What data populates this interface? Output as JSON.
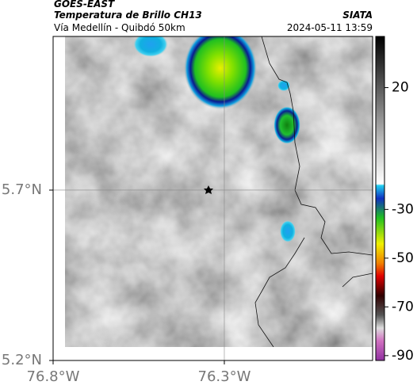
{
  "header": {
    "source": "GOES-EAST",
    "product": "Temperatura de Brillo CH13",
    "org": "SIATA",
    "region": "Vía Medellín - Quibdó 50km",
    "timestamp": "2024-05-11 13:59"
  },
  "chart_data": {
    "type": "map",
    "xlim": [
      -76.8,
      -75.867
    ],
    "ylim": [
      5.2,
      6.151
    ],
    "xticks": [
      {
        "value": -76.8,
        "label": "76.8°W"
      },
      {
        "value": -76.3,
        "label": "76.3°W"
      }
    ],
    "yticks": [
      {
        "value": 5.7,
        "label": "5.7°N"
      },
      {
        "value": 5.2,
        "label": "5.2°N"
      }
    ],
    "grid": true,
    "colorbar": {
      "lim": [
        41,
        -92
      ],
      "ticks": [
        20,
        -30,
        -50,
        -70,
        -90
      ]
    }
  }
}
